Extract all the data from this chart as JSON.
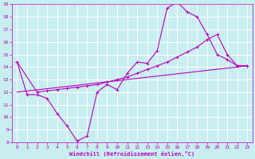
{
  "xlabel": "Windchill (Refroidissement éolien,°C)",
  "xlim": [
    -0.5,
    23.5
  ],
  "ylim": [
    8,
    19
  ],
  "xticks": [
    0,
    1,
    2,
    3,
    4,
    5,
    6,
    7,
    8,
    9,
    10,
    11,
    12,
    13,
    14,
    15,
    16,
    17,
    18,
    19,
    20,
    21,
    22,
    23
  ],
  "yticks": [
    8,
    9,
    10,
    11,
    12,
    13,
    14,
    15,
    16,
    17,
    18,
    19
  ],
  "bg_color": "#c8eef0",
  "line_color": "#bb00bb",
  "grid_color": "#ffffff",
  "line1_x": [
    0,
    1,
    2,
    3,
    4,
    5,
    6,
    7,
    8,
    9,
    10,
    11,
    12,
    13,
    14,
    15,
    16,
    17,
    18,
    19,
    20,
    21,
    22,
    23
  ],
  "line1_y": [
    14.4,
    11.8,
    11.8,
    11.5,
    10.3,
    9.3,
    8.1,
    8.5,
    12.0,
    12.6,
    12.2,
    13.5,
    14.4,
    14.3,
    15.3,
    18.7,
    19.2,
    18.4,
    18.0,
    16.6,
    15.0,
    14.6,
    14.1,
    14.1
  ],
  "line2_x": [
    0,
    2,
    3,
    4,
    5,
    6,
    7,
    8,
    9,
    10,
    11,
    12,
    13,
    14,
    15,
    16,
    17,
    18,
    19,
    20,
    21,
    22,
    23
  ],
  "line2_y": [
    14.4,
    12.0,
    12.1,
    12.2,
    12.3,
    12.4,
    12.5,
    12.6,
    12.8,
    13.0,
    13.2,
    13.5,
    13.8,
    14.1,
    14.4,
    14.8,
    15.2,
    15.6,
    16.2,
    16.6,
    15.0,
    14.1,
    14.1
  ],
  "line3_x": [
    0,
    23
  ],
  "line3_y": [
    12.0,
    14.1
  ]
}
